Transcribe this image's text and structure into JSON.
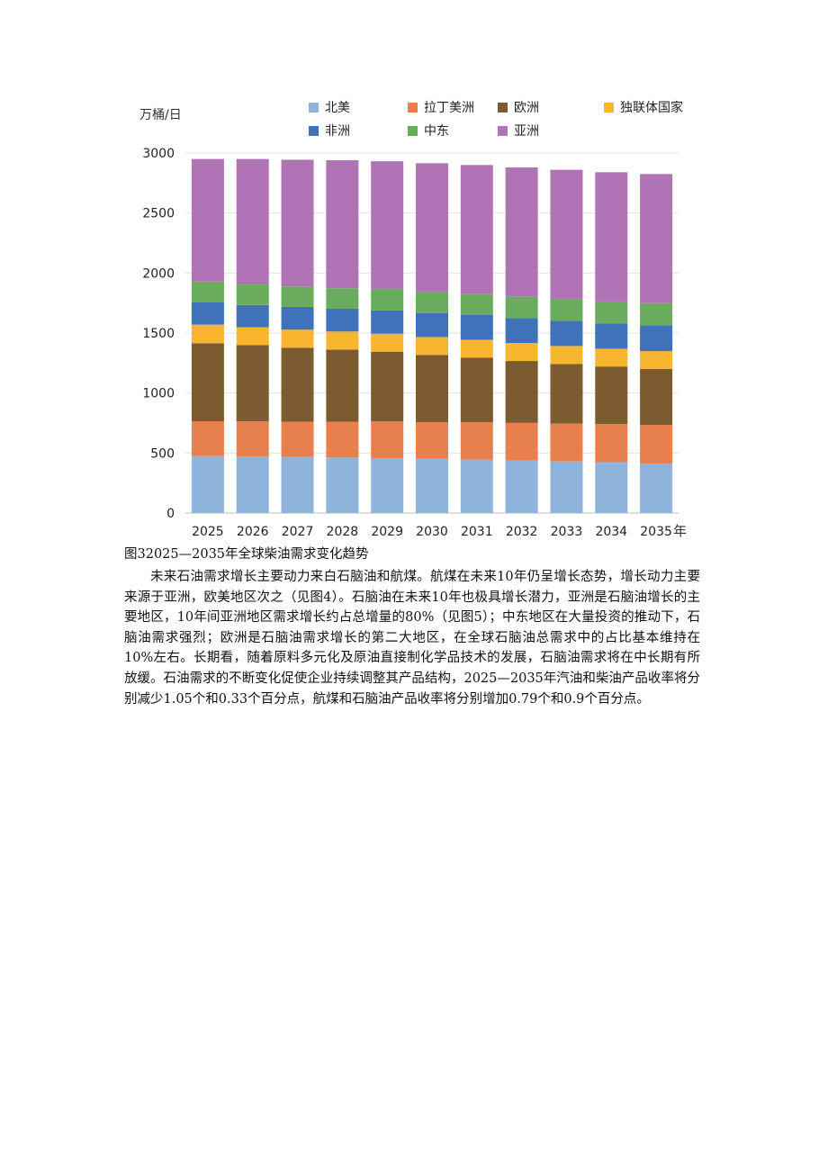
{
  "chart_data": {
    "type": "bar",
    "stacked": true,
    "title": "",
    "xlabel": "年",
    "ylabel": "万桶/日",
    "ylim": [
      0,
      3000
    ],
    "yticks": [
      0,
      500,
      1000,
      1500,
      2000,
      2500,
      3000
    ],
    "categories": [
      "2025",
      "2026",
      "2027",
      "2028",
      "2029",
      "2030",
      "2031",
      "2032",
      "2033",
      "2034",
      "2035"
    ],
    "legend_position": "top",
    "grid": true,
    "series": [
      {
        "name": "北美",
        "color": "#8fb4dc",
        "values": [
          475,
          472,
          468,
          463,
          458,
          452,
          446,
          438,
          430,
          422,
          413
        ]
      },
      {
        "name": "拉丁美洲",
        "color": "#e8804d",
        "values": [
          290,
          292,
          293,
          298,
          305,
          305,
          310,
          313,
          316,
          320,
          322
        ]
      },
      {
        "name": "欧洲",
        "color": "#7b5b2f",
        "values": [
          650,
          636,
          617,
          600,
          581,
          561,
          538,
          516,
          496,
          479,
          466
        ]
      },
      {
        "name": "独联体国家",
        "color": "#f7b530",
        "values": [
          155,
          148,
          150,
          152,
          150,
          149,
          150,
          150,
          150,
          148,
          148
        ]
      },
      {
        "name": "非洲",
        "color": "#3f72b8",
        "values": [
          185,
          186,
          190,
          190,
          195,
          200,
          206,
          208,
          210,
          212,
          216
        ]
      },
      {
        "name": "中东",
        "color": "#6aac5d",
        "values": [
          175,
          170,
          170,
          170,
          172,
          175,
          175,
          177,
          180,
          182,
          185
        ]
      },
      {
        "name": "亚洲",
        "color": "#b073b5",
        "values": [
          1020,
          1046,
          1056,
          1067,
          1070,
          1073,
          1075,
          1078,
          1078,
          1077,
          1075
        ]
      }
    ]
  },
  "caption": "图32025—2035年全球柴油需求变化趋势",
  "paragraph": "未来石油需求增长主要动力来白石脑油和航煤。航煤在未来10年仍呈增长态势，增长动力主要来源于亚洲，欧美地区次之（见图4）。石脑油在未来10年也极具增长潜力，亚洲是石脑油增长的主要地区，10年间亚洲地区需求增长约占总增量的80%（见图5）；中东地区在大量投资的推动下，石脑油需求强烈；欧洲是石脑油需求增长的第二大地区，在全球石脑油总需求中的占比基本维持在10%左右。长期看，随着原料多元化及原油直接制化学品技术的发展，石脑油需求将在中长期有所放缓。石油需求的不断变化促使企业持续调整其产品结构，2025—2035年汽油和柴油产品收率将分别减少1.05个和0.33个百分点，航煤和石脑油产品收率将分别增加0.79个和0.9个百分点。"
}
